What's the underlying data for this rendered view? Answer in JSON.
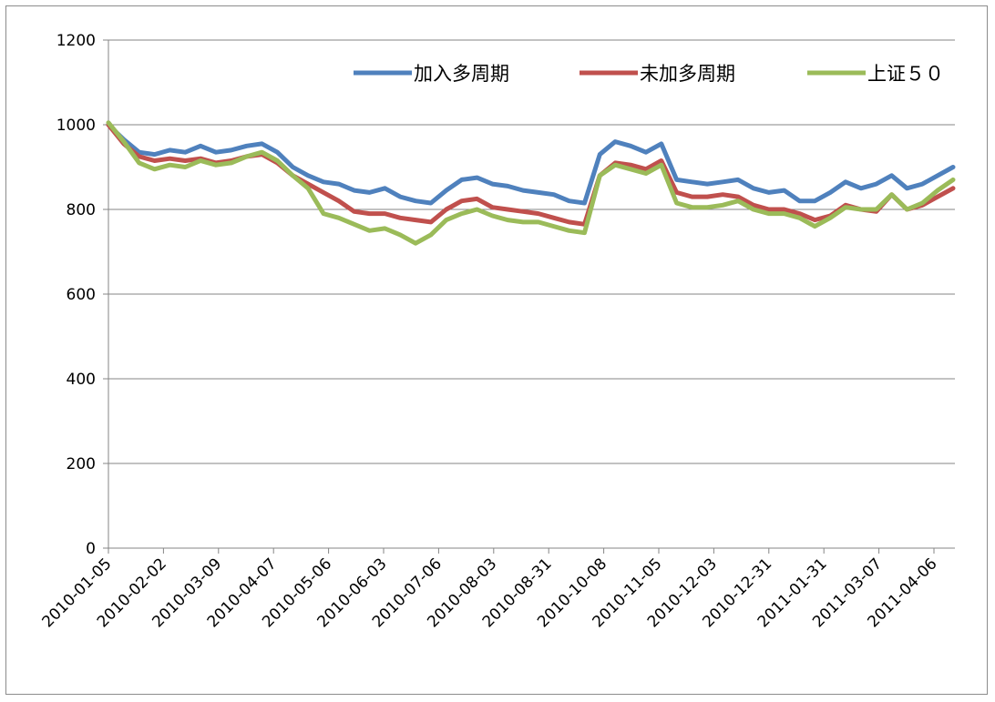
{
  "chart_data": {
    "type": "line",
    "title": "",
    "xlabel": "",
    "ylabel": "",
    "ylim": [
      0,
      1200
    ],
    "y_ticks": [
      "0",
      "200",
      "400",
      "600",
      "800",
      "1000",
      "1200"
    ],
    "x_tick_labels": [
      "2010-01-05",
      "2010-02-02",
      "2010-03-09",
      "2010-04-07",
      "2010-05-06",
      "2010-06-03",
      "2010-07-06",
      "2010-08-03",
      "2010-08-31",
      "2010-10-08",
      "2010-11-05",
      "2010-12-03",
      "2010-12-31",
      "2011-01-31",
      "2011-03-07",
      "2011-04-06"
    ],
    "grid": "horizontal",
    "legend_position": "top-right",
    "series": [
      {
        "name": "加入多周期",
        "color": "#4f81bd",
        "values": [
          1000,
          965,
          935,
          930,
          940,
          935,
          950,
          935,
          940,
          950,
          955,
          935,
          900,
          880,
          865,
          860,
          845,
          840,
          850,
          830,
          820,
          815,
          845,
          870,
          875,
          860,
          855,
          845,
          840,
          835,
          820,
          815,
          930,
          960,
          950,
          935,
          955,
          870,
          865,
          860,
          865,
          870,
          850,
          840,
          845,
          820,
          820,
          840,
          865,
          850,
          860,
          880,
          850,
          860,
          880,
          900
        ]
      },
      {
        "name": "未加多周期",
        "color": "#c0504d",
        "values": [
          1000,
          955,
          925,
          915,
          920,
          915,
          920,
          910,
          915,
          925,
          930,
          910,
          880,
          860,
          840,
          820,
          795,
          790,
          790,
          780,
          775,
          770,
          800,
          820,
          825,
          805,
          800,
          795,
          790,
          780,
          770,
          765,
          880,
          910,
          905,
          895,
          915,
          840,
          830,
          830,
          835,
          830,
          810,
          800,
          800,
          790,
          775,
          785,
          810,
          800,
          795,
          835,
          800,
          810,
          830,
          850
        ]
      },
      {
        "name": "上证５０",
        "color": "#9bbb59",
        "values": [
          1005,
          960,
          910,
          895,
          905,
          900,
          915,
          905,
          910,
          925,
          935,
          915,
          880,
          850,
          790,
          780,
          765,
          750,
          755,
          740,
          720,
          740,
          775,
          790,
          800,
          785,
          775,
          770,
          770,
          760,
          750,
          745,
          880,
          905,
          895,
          885,
          905,
          815,
          805,
          805,
          810,
          820,
          800,
          790,
          790,
          780,
          760,
          780,
          805,
          800,
          800,
          835,
          800,
          815,
          845,
          870
        ]
      }
    ]
  }
}
